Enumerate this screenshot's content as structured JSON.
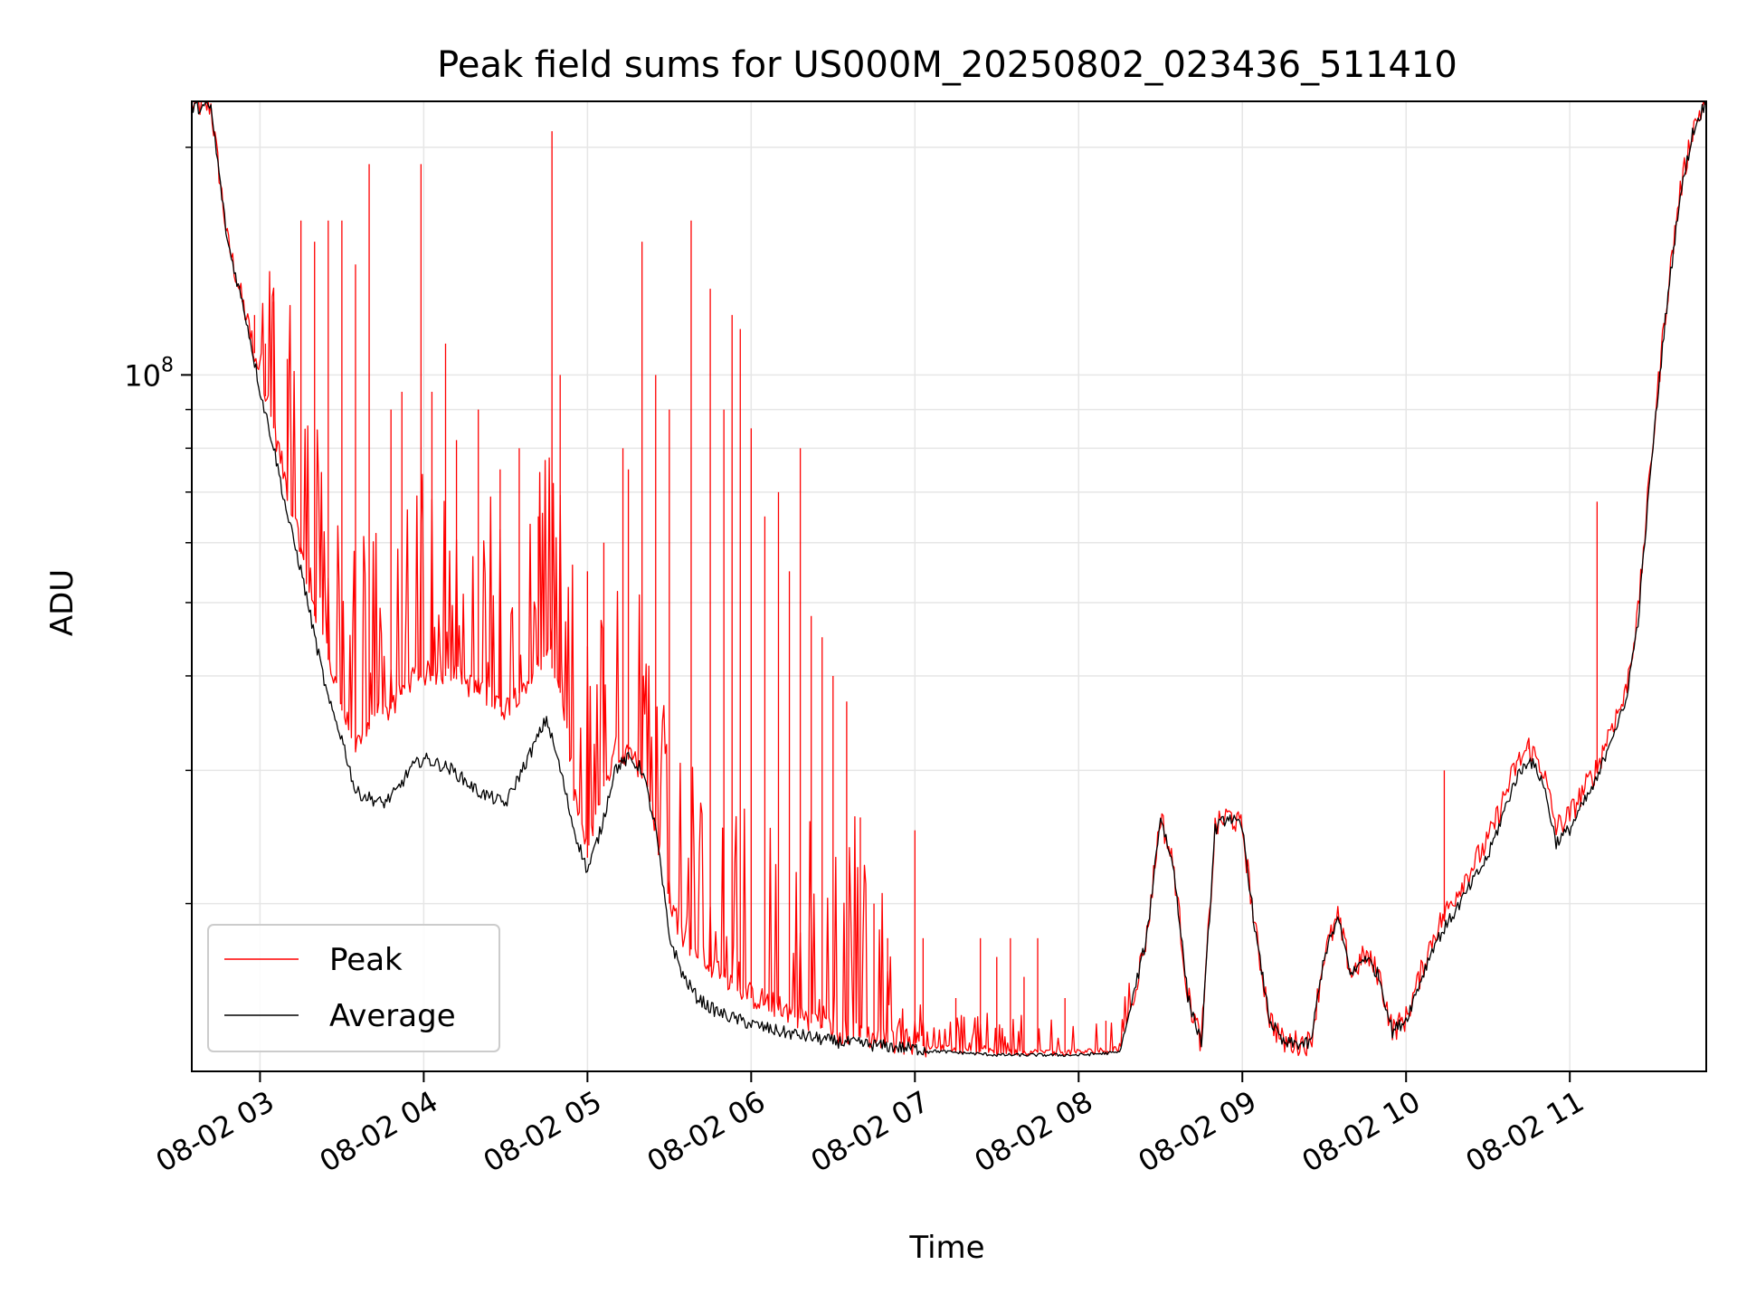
{
  "chart_data": {
    "type": "line",
    "title": "Peak field sums for US000M_20250802_023436_511410",
    "xlabel": "Time",
    "ylabel": "ADU",
    "yscale": "log",
    "grid": true,
    "legend_placement": "lower-left",
    "x_ticks": [
      "08-02 03",
      "08-02 04",
      "08-02 05",
      "08-02 06",
      "08-02 07",
      "08-02 08",
      "08-02 09",
      "08-02 10",
      "08-02 11"
    ],
    "y_ticks": [
      {
        "base": "10",
        "exp": "8",
        "value": 100000000
      }
    ],
    "xlim": [
      "2025-08-02 02:35",
      "2025-08-02 11:50"
    ],
    "ylim": [
      12000000,
      230000000
    ],
    "series": [
      {
        "name": "Peak",
        "color": "#ff0000",
        "x": [
          "02:35",
          "02:42",
          "02:48",
          "02:55",
          "03:00",
          "03:05",
          "03:10",
          "03:15",
          "03:20",
          "03:25",
          "03:30",
          "03:35",
          "03:40",
          "03:45",
          "03:50",
          "03:55",
          "04:00",
          "04:10",
          "04:20",
          "04:30",
          "04:40",
          "04:45",
          "04:50",
          "04:55",
          "05:00",
          "05:05",
          "05:10",
          "05:15",
          "05:20",
          "05:25",
          "05:30",
          "05:35",
          "05:40",
          "05:45",
          "05:50",
          "06:00",
          "06:10",
          "06:20",
          "06:30",
          "06:40",
          "06:50",
          "07:00",
          "07:15",
          "07:30",
          "07:45",
          "08:00",
          "08:15",
          "08:20",
          "08:25",
          "08:30",
          "08:35",
          "08:40",
          "08:45",
          "08:50",
          "08:55",
          "09:00",
          "09:05",
          "09:10",
          "09:15",
          "09:20",
          "09:25",
          "09:30",
          "09:35",
          "09:40",
          "09:45",
          "09:50",
          "09:55",
          "10:00",
          "10:10",
          "10:20",
          "10:30",
          "10:40",
          "10:45",
          "10:50",
          "10:55",
          "11:00",
          "11:05",
          "11:10",
          "11:15",
          "11:20",
          "11:25",
          "11:30",
          "11:35",
          "11:40",
          "11:45",
          "11:50"
        ],
        "y": [
          225000000,
          225000000,
          150000000,
          118000000,
          100000000,
          85000000,
          70000000,
          58000000,
          48000000,
          42000000,
          36000000,
          32000000,
          34000000,
          35000000,
          37000000,
          39000000,
          40000000,
          40000000,
          38000000,
          36000000,
          40000000,
          43000000,
          38000000,
          28000000,
          23000000,
          28000000,
          31000000,
          31000000,
          30000000,
          25000000,
          20000000,
          18000000,
          17000000,
          16500000,
          16000000,
          15000000,
          14500000,
          14000000,
          13500000,
          13300000,
          13100000,
          13000000,
          12800000,
          12700000,
          12700000,
          12700000,
          12800000,
          15000000,
          18000000,
          26000000,
          22000000,
          15000000,
          13000000,
          25000000,
          26000000,
          25000000,
          18000000,
          14000000,
          13000000,
          13000000,
          13000000,
          17000000,
          19000000,
          16000000,
          17000000,
          16000000,
          13500000,
          14000000,
          18000000,
          21000000,
          24000000,
          30000000,
          32000000,
          30000000,
          25000000,
          26000000,
          28000000,
          30000000,
          34000000,
          37000000,
          48000000,
          78000000,
          120000000,
          170000000,
          210000000,
          230000000
        ],
        "spikes": [
          {
            "t": "02:58",
            "y": 120000000
          },
          {
            "t": "03:02",
            "y": 110000000
          },
          {
            "t": "03:05",
            "y": 125000000
          },
          {
            "t": "03:10",
            "y": 105000000
          },
          {
            "t": "03:15",
            "y": 160000000
          },
          {
            "t": "03:20",
            "y": 150000000
          },
          {
            "t": "03:25",
            "y": 160000000
          },
          {
            "t": "03:30",
            "y": 160000000
          },
          {
            "t": "03:35",
            "y": 140000000
          },
          {
            "t": "03:40",
            "y": 190000000
          },
          {
            "t": "03:48",
            "y": 90000000
          },
          {
            "t": "03:52",
            "y": 95000000
          },
          {
            "t": "03:59",
            "y": 190000000
          },
          {
            "t": "04:03",
            "y": 95000000
          },
          {
            "t": "04:08",
            "y": 110000000
          },
          {
            "t": "04:12",
            "y": 82000000
          },
          {
            "t": "04:20",
            "y": 90000000
          },
          {
            "t": "04:28",
            "y": 75000000
          },
          {
            "t": "04:35",
            "y": 80000000
          },
          {
            "t": "04:42",
            "y": 65000000
          },
          {
            "t": "04:47",
            "y": 210000000
          },
          {
            "t": "04:50",
            "y": 100000000
          },
          {
            "t": "05:00",
            "y": 55000000
          },
          {
            "t": "05:06",
            "y": 60000000
          },
          {
            "t": "05:13",
            "y": 80000000
          },
          {
            "t": "05:15",
            "y": 75000000
          },
          {
            "t": "05:20",
            "y": 150000000
          },
          {
            "t": "05:25",
            "y": 100000000
          },
          {
            "t": "05:30",
            "y": 90000000
          },
          {
            "t": "05:38",
            "y": 160000000
          },
          {
            "t": "05:45",
            "y": 130000000
          },
          {
            "t": "05:50",
            "y": 90000000
          },
          {
            "t": "05:53",
            "y": 120000000
          },
          {
            "t": "05:56",
            "y": 115000000
          },
          {
            "t": "06:00",
            "y": 85000000
          },
          {
            "t": "06:05",
            "y": 65000000
          },
          {
            "t": "06:10",
            "y": 70000000
          },
          {
            "t": "06:14",
            "y": 55000000
          },
          {
            "t": "06:18",
            "y": 80000000
          },
          {
            "t": "06:22",
            "y": 48000000
          },
          {
            "t": "06:26",
            "y": 45000000
          },
          {
            "t": "06:30",
            "y": 40000000
          },
          {
            "t": "06:35",
            "y": 37000000
          },
          {
            "t": "06:40",
            "y": 26000000
          },
          {
            "t": "06:45",
            "y": 20000000
          },
          {
            "t": "06:50",
            "y": 18000000
          },
          {
            "t": "07:00",
            "y": 25000000
          },
          {
            "t": "07:03",
            "y": 18000000
          },
          {
            "t": "07:15",
            "y": 15000000
          },
          {
            "t": "07:24",
            "y": 18000000
          },
          {
            "t": "07:30",
            "y": 17000000
          },
          {
            "t": "07:35",
            "y": 18000000
          },
          {
            "t": "07:40",
            "y": 16000000
          },
          {
            "t": "07:45",
            "y": 18000000
          },
          {
            "t": "07:55",
            "y": 15000000
          },
          {
            "t": "08:10",
            "y": 14000000
          },
          {
            "t": "10:14",
            "y": 30000000
          },
          {
            "t": "10:45",
            "y": 33000000
          },
          {
            "t": "11:10",
            "y": 68000000
          }
        ]
      },
      {
        "name": "Average",
        "color": "#000000",
        "x": [
          "02:35",
          "02:42",
          "02:48",
          "02:55",
          "03:00",
          "03:05",
          "03:10",
          "03:15",
          "03:20",
          "03:25",
          "03:30",
          "03:35",
          "03:40",
          "03:45",
          "03:50",
          "03:55",
          "04:00",
          "04:10",
          "04:20",
          "04:30",
          "04:40",
          "04:45",
          "04:50",
          "04:55",
          "05:00",
          "05:05",
          "05:10",
          "05:15",
          "05:20",
          "05:25",
          "05:30",
          "05:35",
          "05:40",
          "05:45",
          "05:50",
          "06:00",
          "06:10",
          "06:20",
          "06:30",
          "06:40",
          "06:50",
          "07:00",
          "07:15",
          "07:30",
          "07:45",
          "08:00",
          "08:15",
          "08:20",
          "08:25",
          "08:30",
          "08:35",
          "08:40",
          "08:45",
          "08:50",
          "08:55",
          "09:00",
          "09:05",
          "09:10",
          "09:15",
          "09:20",
          "09:25",
          "09:30",
          "09:35",
          "09:40",
          "09:45",
          "09:50",
          "09:55",
          "10:00",
          "10:10",
          "10:20",
          "10:30",
          "10:40",
          "10:45",
          "10:50",
          "10:55",
          "11:00",
          "11:05",
          "11:10",
          "11:15",
          "11:20",
          "11:25",
          "11:30",
          "11:35",
          "11:40",
          "11:45",
          "11:50"
        ],
        "y": [
          225000000,
          225000000,
          150000000,
          118000000,
          95000000,
          80000000,
          65000000,
          55000000,
          45000000,
          37000000,
          33000000,
          28000000,
          27500000,
          27000000,
          28000000,
          30000000,
          31000000,
          30000000,
          28000000,
          27000000,
          32000000,
          35000000,
          30000000,
          25000000,
          22000000,
          25000000,
          30000000,
          31000000,
          30000000,
          25000000,
          18000000,
          16000000,
          15000000,
          14500000,
          14200000,
          13800000,
          13500000,
          13300000,
          13100000,
          13000000,
          12900000,
          12800000,
          12700000,
          12600000,
          12600000,
          12600000,
          12700000,
          15000000,
          18000000,
          26000000,
          22000000,
          15000000,
          13000000,
          25000000,
          26000000,
          25000000,
          18000000,
          14000000,
          13000000,
          13000000,
          13000000,
          17000000,
          19000000,
          16000000,
          17000000,
          16000000,
          13500000,
          14000000,
          17500000,
          20000000,
          23000000,
          29000000,
          31000000,
          29000000,
          24000000,
          25000000,
          27000000,
          29000000,
          33000000,
          36000000,
          47000000,
          77000000,
          118000000,
          168000000,
          208000000,
          230000000
        ]
      }
    ]
  }
}
